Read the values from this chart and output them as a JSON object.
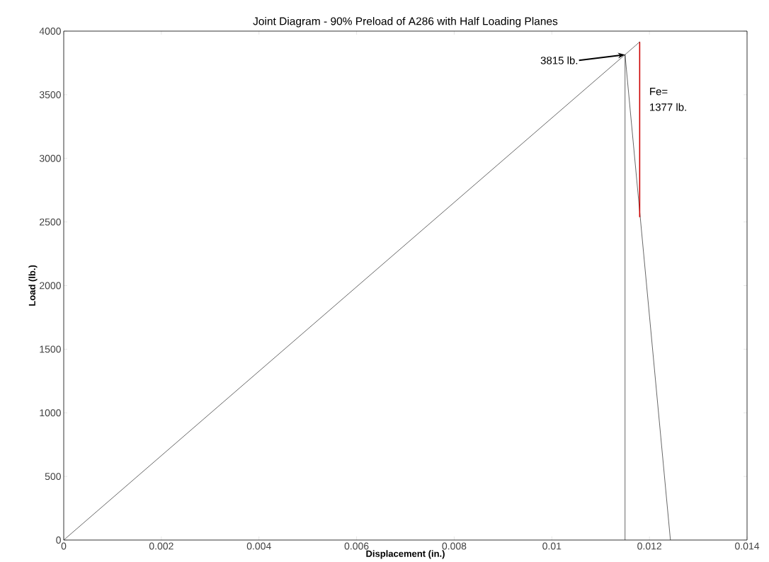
{
  "chart_data": {
    "type": "line",
    "title": "Joint Diagram - 90% Preload of A286 with Half Loading Planes",
    "xlabel": "Displacement (in.)",
    "ylabel": "Load (lb.)",
    "xlim": [
      0,
      0.014
    ],
    "ylim": [
      0,
      4000
    ],
    "xticks": [
      0,
      0.002,
      0.004,
      0.006,
      0.008,
      0.01,
      0.012,
      0.014
    ],
    "yticks": [
      0,
      500,
      1000,
      1500,
      2000,
      2500,
      3000,
      3500,
      4000
    ],
    "grid": false,
    "marker": "none",
    "series": [
      {
        "color": "#000000",
        "x": [
          0,
          0.0115
        ],
        "values": [
          0,
          3815
        ]
      },
      {
        "color": "#000000",
        "x": [
          0.0115,
          0.0115
        ],
        "values": [
          3815,
          0
        ]
      },
      {
        "color": "#000000",
        "x": [
          0.0115,
          0.01243
        ],
        "values": [
          3815,
          0
        ]
      },
      {
        "color": "#cc0000",
        "x": [
          0.0118,
          0.0118
        ],
        "values": [
          3915,
          2538
        ]
      },
      {
        "color": "#000000",
        "line_style": "dotted",
        "x": [
          0.0118,
          0.0115
        ],
        "values": [
          3915,
          3815
        ]
      }
    ],
    "annotations": [
      {
        "text": "3815 lb.",
        "x": 0.0115,
        "y": 3815
      },
      "Fe=",
      "1377 lb."
    ]
  }
}
